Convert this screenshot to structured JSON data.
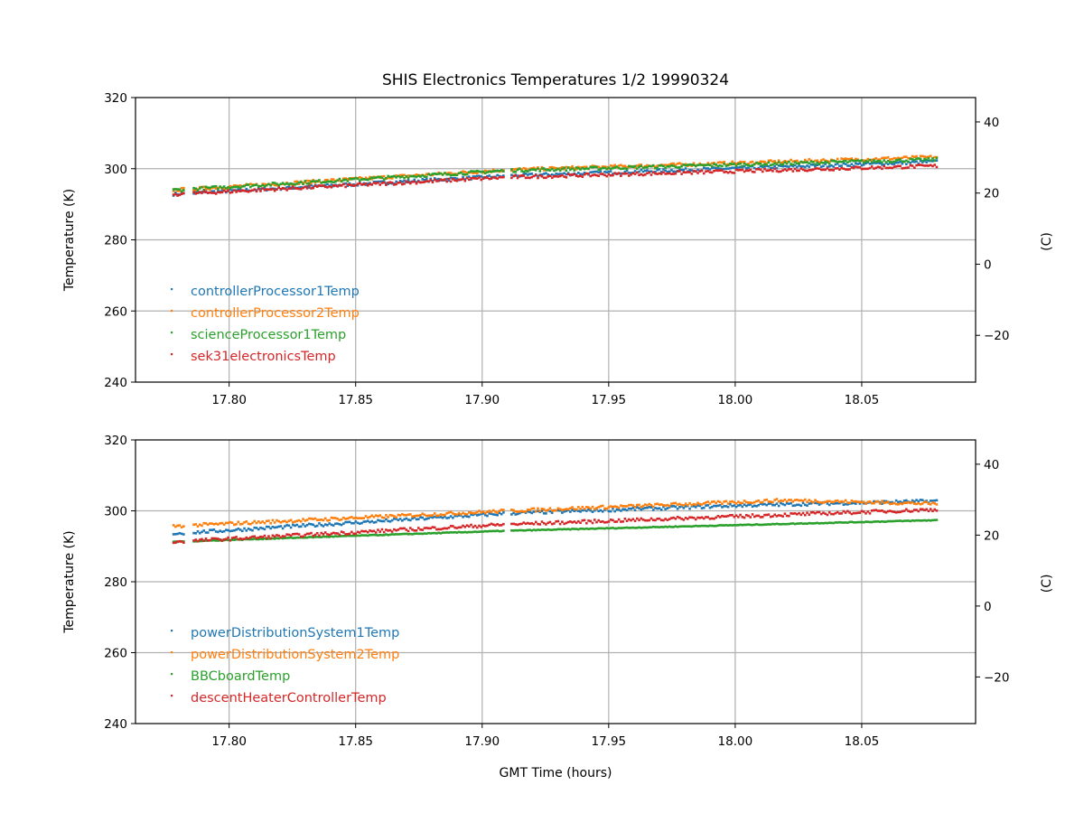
{
  "chart_data": [
    {
      "type": "scatter",
      "title": "SHIS Electronics Temperatures 1/2 19990324",
      "xlabel": "",
      "ylabel": "Temperature (K)",
      "ylabel_right": "(C)",
      "xlim": [
        17.763,
        18.095
      ],
      "ylim": [
        240,
        320
      ],
      "xticks": [
        "17.80",
        "17.85",
        "17.90",
        "17.95",
        "18.00",
        "18.05"
      ],
      "yticks": [
        "240",
        "260",
        "280",
        "300",
        "320"
      ],
      "yticks_right": [
        "−20",
        "0",
        "20",
        "40"
      ],
      "grid": true,
      "legend_position": "lower-left",
      "series": [
        {
          "name": "controllerProcessor1Temp",
          "color": "#1f77b4",
          "x": [
            17.778,
            17.91,
            18.08
          ],
          "y": [
            292.9,
            298.0,
            302.0
          ]
        },
        {
          "name": "controllerProcessor2Temp",
          "color": "#ff7f0e",
          "x": [
            17.778,
            17.91,
            18.08
          ],
          "y": [
            294.0,
            299.7,
            303.3
          ]
        },
        {
          "name": "scienceProcessor1Temp",
          "color": "#2ca02c",
          "x": [
            17.778,
            17.91,
            18.08
          ],
          "y": [
            294.0,
            299.5,
            302.6
          ]
        },
        {
          "name": "sek31electronicsTemp",
          "color": "#d62728",
          "x": [
            17.778,
            17.91,
            18.08
          ],
          "y": [
            292.8,
            297.6,
            300.8
          ]
        }
      ]
    },
    {
      "type": "scatter",
      "xlabel": "GMT Time (hours)",
      "ylabel": "Temperature (K)",
      "ylabel_right": "(C)",
      "xlim": [
        17.763,
        18.095
      ],
      "ylim": [
        240,
        320
      ],
      "xticks": [
        "17.80",
        "17.85",
        "17.90",
        "17.95",
        "18.00",
        "18.05"
      ],
      "yticks": [
        "240",
        "260",
        "280",
        "300",
        "320"
      ],
      "yticks_right": [
        "−20",
        "0",
        "20",
        "40"
      ],
      "grid": true,
      "legend_position": "lower-left",
      "series": [
        {
          "name": "powerDistributionSystem1Temp",
          "color": "#1f77b4",
          "x": [
            17.778,
            17.91,
            18.0,
            18.08
          ],
          "y": [
            293.6,
            299.3,
            301.5,
            302.8
          ]
        },
        {
          "name": "powerDistributionSystem2Temp",
          "color": "#ff7f0e",
          "x": [
            17.778,
            17.91,
            18.02,
            18.08
          ],
          "y": [
            295.7,
            300.0,
            303.0,
            302.0
          ]
        },
        {
          "name": "BBCboardTemp",
          "color": "#2ca02c",
          "x": [
            17.778,
            17.91,
            18.08
          ],
          "y": [
            291.3,
            294.4,
            297.4
          ]
        },
        {
          "name": "descentHeaterControllerTemp",
          "color": "#d62728",
          "x": [
            17.778,
            17.91,
            18.08
          ],
          "y": [
            291.3,
            296.2,
            300.4
          ]
        }
      ]
    }
  ]
}
